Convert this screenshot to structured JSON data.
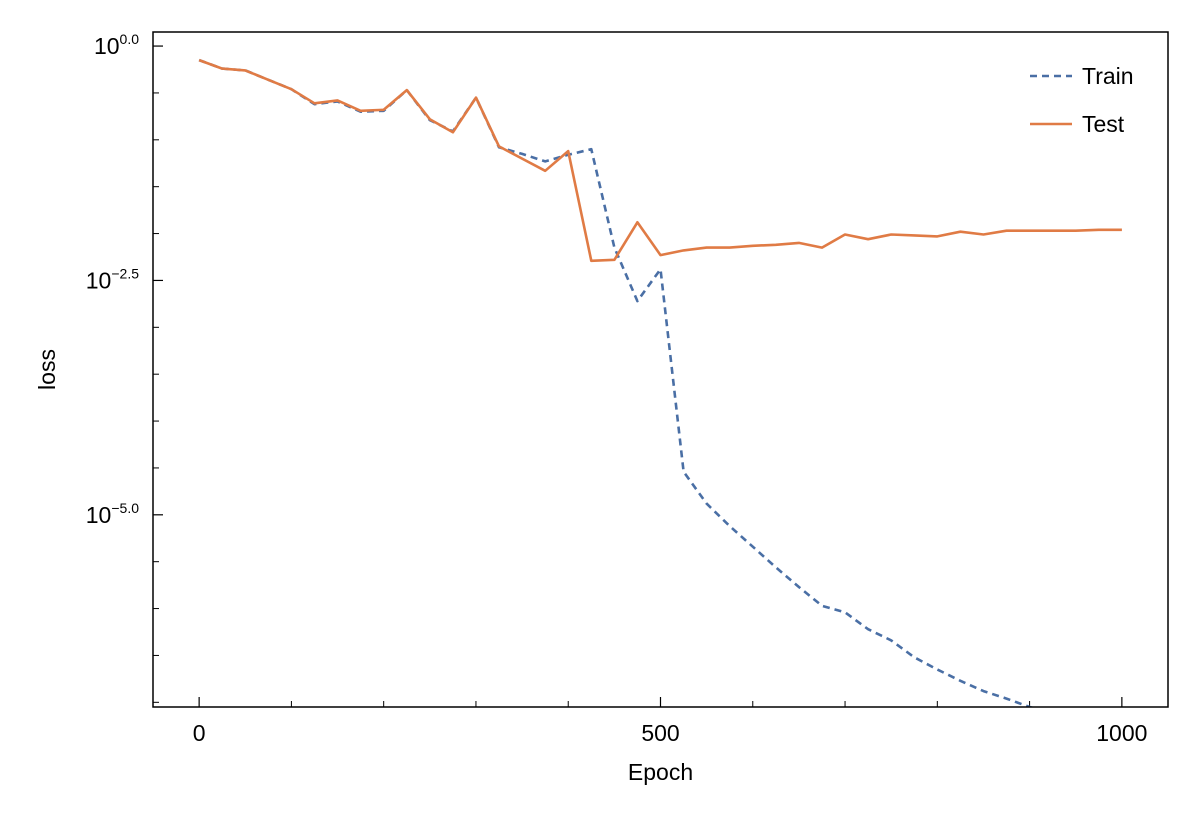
{
  "chart_data": {
    "type": "line",
    "xlabel": "Epoch",
    "ylabel": "loss",
    "y_scale": "log10",
    "xlim": [
      -50,
      1050
    ],
    "ylim_log10": [
      -7.05,
      0.15
    ],
    "x_ticks": [
      0,
      500,
      1000
    ],
    "x_tick_labels": [
      "0",
      "500",
      "1000"
    ],
    "y_ticks_log10": [
      0,
      -2.5,
      -5
    ],
    "y_tick_labels": [
      {
        "base": "10",
        "exp": "0.0"
      },
      {
        "base": "10",
        "exp": "−2.5"
      },
      {
        "base": "10",
        "exp": "−5.0"
      }
    ],
    "grid": false,
    "legend_position": "top-right",
    "series": [
      {
        "name": "Train",
        "style": "dashed",
        "color": "#4a6fa5",
        "x": [
          0,
          25,
          50,
          75,
          100,
          125,
          150,
          175,
          200,
          225,
          250,
          275,
          300,
          325,
          350,
          375,
          400,
          425,
          450,
          475,
          500,
          525,
          550,
          575,
          600,
          625,
          650,
          675,
          700,
          725,
          750,
          775,
          800,
          825,
          850,
          875,
          900,
          925,
          950,
          975,
          1000
        ],
        "log10_values": [
          -0.15,
          -0.24,
          -0.26,
          -0.36,
          -0.46,
          -0.62,
          -0.59,
          -0.7,
          -0.69,
          -0.47,
          -0.79,
          -0.91,
          -0.55,
          -1.08,
          -1.15,
          -1.23,
          -1.16,
          -1.1,
          -2.15,
          -2.72,
          -2.38,
          -4.54,
          -4.88,
          -5.12,
          -5.34,
          -5.56,
          -5.77,
          -5.97,
          -6.04,
          -6.22,
          -6.34,
          -6.52,
          -6.65,
          -6.77,
          -6.88,
          -6.96,
          -7.05,
          -7.12,
          -7.16,
          -7.18,
          -7.18
        ]
      },
      {
        "name": "Test",
        "style": "solid",
        "color": "#e07b45",
        "x": [
          0,
          25,
          50,
          75,
          100,
          125,
          150,
          175,
          200,
          225,
          250,
          275,
          300,
          325,
          350,
          375,
          400,
          425,
          450,
          475,
          500,
          525,
          550,
          575,
          600,
          625,
          650,
          675,
          700,
          725,
          750,
          775,
          800,
          825,
          850,
          875,
          900,
          925,
          950,
          975,
          1000
        ],
        "log10_values": [
          -0.15,
          -0.24,
          -0.26,
          -0.36,
          -0.46,
          -0.61,
          -0.58,
          -0.69,
          -0.68,
          -0.47,
          -0.78,
          -0.92,
          -0.55,
          -1.07,
          -1.2,
          -1.33,
          -1.12,
          -2.29,
          -2.28,
          -1.88,
          -2.23,
          -2.18,
          -2.15,
          -2.15,
          -2.13,
          -2.12,
          -2.1,
          -2.15,
          -2.01,
          -2.06,
          -2.01,
          -2.02,
          -2.03,
          -1.98,
          -2.01,
          -1.97,
          -1.97,
          -1.97,
          -1.97,
          -1.96,
          -1.96
        ]
      }
    ]
  }
}
